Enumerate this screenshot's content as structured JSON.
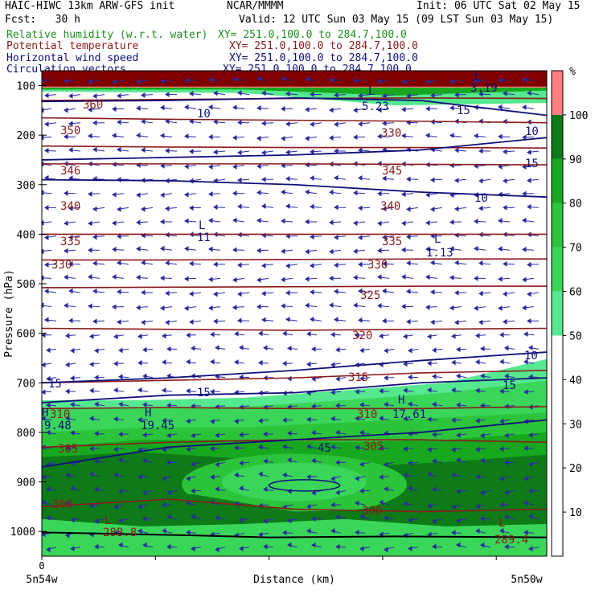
{
  "header": {
    "title_line": "HAIC-HIWC 13km ARW-GFS init",
    "org": "NCAR/MMMM",
    "init": "Init: 06 UTC Sat 02 May 15",
    "fcst": "Fcst:   30 h",
    "valid": "Valid: 12 UTC Sun 03 May 15 (09 LST Sun 03 May 15)",
    "fields": [
      {
        "name": "Relative humidity (w.r.t. water)",
        "xy": "XY= 251.0,100.0 to 284.7,100.0",
        "color": "#1f8f1f"
      },
      {
        "name": "Potential temperature",
        "xy": "XY= 251.0,100.0 to 284.7,100.0",
        "color": "#8b1a1a"
      },
      {
        "name": "Horizontal wind speed",
        "xy": "XY= 251.0,100.0 to 284.7,100.0",
        "color": "#10107a"
      },
      {
        "name": "Circulation vectors",
        "xy": "XY= 251.0,100.0 to 284.7,100.0",
        "color": "#10107a"
      }
    ]
  },
  "chart_data": {
    "type": "heatmap",
    "ylabel": "Pressure (hPa)",
    "xlabel": "Distance (km)",
    "x_start_label": "5n54w",
    "x_end_label": "5n50w",
    "x_zero_label": "0",
    "y_ticks": [
      100,
      200,
      300,
      400,
      500,
      600,
      700,
      800,
      900,
      1000
    ],
    "ylim": [
      1050,
      70
    ],
    "colorbar": {
      "unit": "%",
      "ticks": [
        10,
        20,
        30,
        40,
        50,
        60,
        70,
        80,
        90,
        100
      ],
      "levels": [
        {
          "from": 50,
          "to": 60,
          "color": "#56e88f"
        },
        {
          "from": 60,
          "to": 70,
          "color": "#3ad65a"
        },
        {
          "from": 70,
          "to": 80,
          "color": "#2cc43a"
        },
        {
          "from": 80,
          "to": 90,
          "color": "#17a81f"
        },
        {
          "from": 90,
          "to": 100,
          "color": "#0e7a18"
        },
        {
          "from": 100,
          "to": 110,
          "color": "#ff8080"
        }
      ]
    },
    "theta_contours": [
      {
        "value": 360,
        "p": [
          130,
          128,
          126,
          125,
          126
        ]
      },
      {
        "value": 350,
        "p": [
          165,
          168,
          170,
          172,
          175
        ]
      },
      {
        "value": 345,
        "p": [
          222,
          224,
          225,
          225,
          226
        ]
      },
      {
        "value": 340,
        "p": [
          258,
          258,
          258,
          259,
          260
        ]
      },
      {
        "value": 335,
        "p": [
          400,
          400,
          400,
          400,
          400
        ]
      },
      {
        "value": 330,
        "p": [
          452,
          452,
          451,
          450,
          450
        ]
      },
      {
        "value": 325,
        "p": [
          508,
          507,
          506,
          505,
          505
        ]
      },
      {
        "value": 320,
        "p": [
          590,
          592,
          594,
          592,
          590
        ]
      },
      {
        "value": 315,
        "p": [
          700,
          695,
          690,
          680,
          675
        ]
      },
      {
        "value": 310,
        "p": [
          752,
          750,
          752,
          752,
          748
        ]
      },
      {
        "value": 305,
        "p": [
          830,
          820,
          815,
          815,
          820
        ]
      },
      {
        "value": 300,
        "p": [
          950,
          935,
          955,
          960,
          955
        ]
      }
    ],
    "theta_labels": [
      "360",
      "350",
      "346",
      "345",
      "330",
      "340",
      "340",
      "335",
      "335",
      "330",
      "330",
      "325",
      "320",
      "315",
      "310",
      "310",
      "305",
      "305",
      "300",
      "300"
    ],
    "wind_contours": [
      {
        "value": 10,
        "p": [
          132,
          130,
          125,
          130,
          160
        ]
      },
      {
        "value": 15,
        "p": [
          250,
          245,
          240,
          230,
          205
        ]
      },
      {
        "value": 10,
        "p": [
          290,
          292,
          300,
          315,
          325
        ]
      },
      {
        "value": 10,
        "p": [
          700,
          690,
          675,
          655,
          638
        ]
      },
      {
        "value": 15,
        "p": [
          740,
          725,
          720,
          700,
          690
        ]
      },
      {
        "value": 15,
        "p": [
          870,
          830,
          815,
          800,
          775
        ]
      }
    ],
    "wind_labels": [
      "10",
      "10",
      "15",
      "15",
      "10",
      "10",
      "15",
      "15",
      "15",
      "45"
    ],
    "markers": [
      {
        "symbol": "L",
        "value": "5.23"
      },
      {
        "symbol": "L",
        "value": "3.19"
      },
      {
        "symbol": "L",
        "value": "11"
      },
      {
        "symbol": "L",
        "value": "1.13"
      },
      {
        "symbol": "H",
        "value": "9.48"
      },
      {
        "symbol": "H",
        "value": "19.45"
      },
      {
        "symbol": "H",
        "value": "17.61"
      },
      {
        "symbol": "L",
        "value": "288.8"
      },
      {
        "symbol": "L",
        "value": "289.4"
      }
    ],
    "colors": {
      "theta": "#8b1a1a",
      "wind": "#10107a",
      "vectors": "#2a2aa0",
      "background": "#ffffff"
    }
  }
}
